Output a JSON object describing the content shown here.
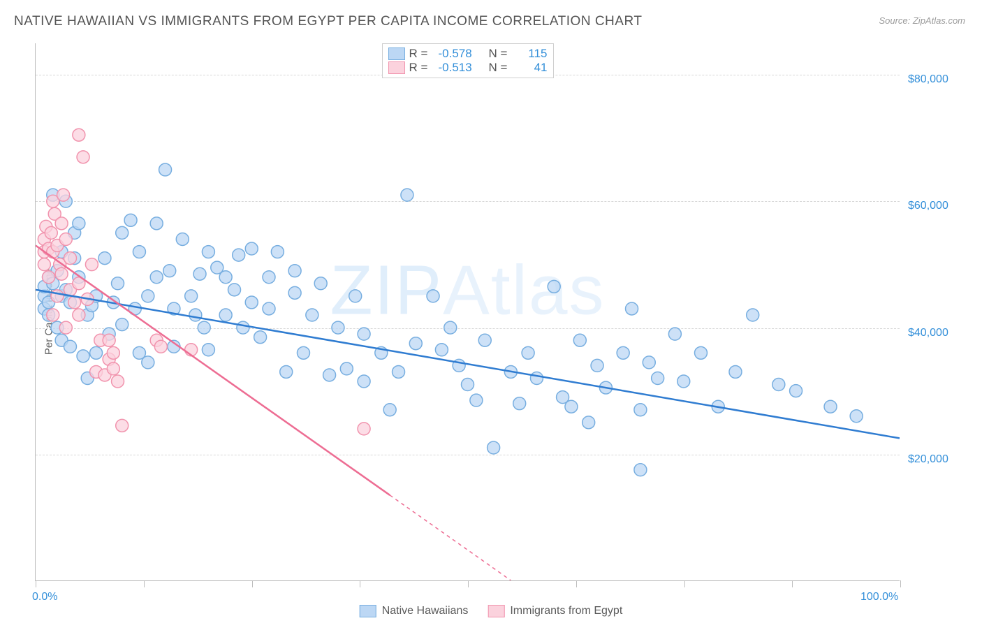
{
  "title": "NATIVE HAWAIIAN VS IMMIGRANTS FROM EGYPT PER CAPITA INCOME CORRELATION CHART",
  "source": "Source: ZipAtlas.com",
  "ylabel": "Per Capita Income",
  "watermark_a": "ZIP",
  "watermark_b": "Atlas",
  "chart": {
    "type": "scatter",
    "xlim": [
      0,
      100
    ],
    "ylim": [
      0,
      85000
    ],
    "x_ticks": [
      0,
      12.5,
      25,
      37.5,
      50,
      62.5,
      75,
      87.5,
      100
    ],
    "x_tick_labels_shown": {
      "0": "0.0%",
      "100": "100.0%"
    },
    "y_gridlines": [
      20000,
      40000,
      60000,
      80000
    ],
    "y_tick_labels": {
      "20000": "$20,000",
      "40000": "$40,000",
      "60000": "$60,000",
      "80000": "$80,000"
    },
    "background_color": "#ffffff",
    "grid_color": "#d8d8d8",
    "axis_color": "#bdbdbd",
    "ytick_label_color": "#338fd9",
    "xtick_label_color": "#338fd9",
    "label_fontsize": 15,
    "tick_fontsize": 16,
    "title_fontsize": 19,
    "title_color": "#545454",
    "marker_radius": 9,
    "marker_stroke_width": 1.5,
    "trend_line_width": 2.5,
    "series": [
      {
        "name": "Native Hawaiians",
        "color_fill": "#bcd7f4",
        "color_stroke": "#77aee0",
        "trend_color": "#2f7cd1",
        "R": -0.578,
        "N": 115,
        "trend": {
          "x1": 0,
          "y1": 46000,
          "x2": 100,
          "y2": 22500,
          "solid_to_x": 100
        },
        "points": [
          [
            1,
            45000
          ],
          [
            1,
            43000
          ],
          [
            1,
            46500
          ],
          [
            1.5,
            48000
          ],
          [
            1.5,
            44000
          ],
          [
            1.5,
            42000
          ],
          [
            2,
            47000
          ],
          [
            2,
            61000
          ],
          [
            2.5,
            49000
          ],
          [
            2.5,
            40000
          ],
          [
            3,
            52000
          ],
          [
            3,
            38000
          ],
          [
            3,
            45000
          ],
          [
            3.5,
            46000
          ],
          [
            3.5,
            60000
          ],
          [
            4,
            44000
          ],
          [
            4,
            37000
          ],
          [
            4.5,
            55000
          ],
          [
            4.5,
            51000
          ],
          [
            5,
            48000
          ],
          [
            5,
            56500
          ],
          [
            5.5,
            35500
          ],
          [
            6,
            42000
          ],
          [
            6,
            32000
          ],
          [
            6.5,
            43500
          ],
          [
            7,
            36000
          ],
          [
            7,
            45000
          ],
          [
            8,
            51000
          ],
          [
            8.5,
            39000
          ],
          [
            9,
            44000
          ],
          [
            9.5,
            47000
          ],
          [
            10,
            40500
          ],
          [
            10,
            55000
          ],
          [
            11,
            57000
          ],
          [
            11.5,
            43000
          ],
          [
            12,
            36000
          ],
          [
            12,
            52000
          ],
          [
            13,
            45000
          ],
          [
            13,
            34500
          ],
          [
            14,
            56500
          ],
          [
            14,
            48000
          ],
          [
            15,
            65000
          ],
          [
            15.5,
            49000
          ],
          [
            16,
            43000
          ],
          [
            16,
            37000
          ],
          [
            17,
            54000
          ],
          [
            18,
            45000
          ],
          [
            18.5,
            42000
          ],
          [
            19,
            48500
          ],
          [
            19.5,
            40000
          ],
          [
            20,
            52000
          ],
          [
            20,
            36500
          ],
          [
            21,
            49500
          ],
          [
            22,
            42000
          ],
          [
            22,
            48000
          ],
          [
            23,
            46000
          ],
          [
            23.5,
            51500
          ],
          [
            24,
            40000
          ],
          [
            25,
            44000
          ],
          [
            25,
            52500
          ],
          [
            26,
            38500
          ],
          [
            27,
            48000
          ],
          [
            27,
            43000
          ],
          [
            28,
            52000
          ],
          [
            29,
            33000
          ],
          [
            30,
            45500
          ],
          [
            30,
            49000
          ],
          [
            31,
            36000
          ],
          [
            32,
            42000
          ],
          [
            33,
            47000
          ],
          [
            34,
            32500
          ],
          [
            35,
            40000
          ],
          [
            36,
            33500
          ],
          [
            37,
            45000
          ],
          [
            38,
            39000
          ],
          [
            38,
            31500
          ],
          [
            40,
            36000
          ],
          [
            41,
            27000
          ],
          [
            42,
            33000
          ],
          [
            43,
            61000
          ],
          [
            44,
            37500
          ],
          [
            46,
            45000
          ],
          [
            47,
            36500
          ],
          [
            48,
            40000
          ],
          [
            49,
            34000
          ],
          [
            50,
            31000
          ],
          [
            51,
            28500
          ],
          [
            52,
            38000
          ],
          [
            53,
            21000
          ],
          [
            55,
            33000
          ],
          [
            56,
            28000
          ],
          [
            57,
            36000
          ],
          [
            58,
            32000
          ],
          [
            60,
            46500
          ],
          [
            61,
            29000
          ],
          [
            62,
            27500
          ],
          [
            63,
            38000
          ],
          [
            64,
            25000
          ],
          [
            65,
            34000
          ],
          [
            66,
            30500
          ],
          [
            68,
            36000
          ],
          [
            69,
            43000
          ],
          [
            70,
            27000
          ],
          [
            71,
            34500
          ],
          [
            72,
            32000
          ],
          [
            74,
            39000
          ],
          [
            75,
            31500
          ],
          [
            77,
            36000
          ],
          [
            79,
            27500
          ],
          [
            81,
            33000
          ],
          [
            83,
            42000
          ],
          [
            86,
            31000
          ],
          [
            88,
            30000
          ],
          [
            92,
            27500
          ],
          [
            95,
            26000
          ],
          [
            70,
            17500
          ]
        ]
      },
      {
        "name": "Immigrants from Egypt",
        "color_fill": "#fbd2dd",
        "color_stroke": "#f193ad",
        "trend_color": "#ed6d93",
        "R": -0.513,
        "N": 41,
        "trend": {
          "x1": 0,
          "y1": 53000,
          "x2": 55,
          "y2": 0,
          "solid_to_x": 41
        },
        "points": [
          [
            1,
            52000
          ],
          [
            1,
            54000
          ],
          [
            1,
            50000
          ],
          [
            1.2,
            56000
          ],
          [
            1.5,
            52500
          ],
          [
            1.5,
            48000
          ],
          [
            1.8,
            55000
          ],
          [
            2,
            60000
          ],
          [
            2,
            52000
          ],
          [
            2,
            42000
          ],
          [
            2.2,
            58000
          ],
          [
            2.5,
            53000
          ],
          [
            2.5,
            45000
          ],
          [
            2.8,
            50000
          ],
          [
            3,
            56500
          ],
          [
            3,
            48500
          ],
          [
            3.2,
            61000
          ],
          [
            3.5,
            54000
          ],
          [
            3.5,
            40000
          ],
          [
            4,
            51000
          ],
          [
            4,
            46000
          ],
          [
            4.5,
            44000
          ],
          [
            5,
            70500
          ],
          [
            5,
            42000
          ],
          [
            5,
            47000
          ],
          [
            5.5,
            67000
          ],
          [
            6,
            44500
          ],
          [
            6.5,
            50000
          ],
          [
            7,
            33000
          ],
          [
            7.5,
            38000
          ],
          [
            8,
            32500
          ],
          [
            8.5,
            35000
          ],
          [
            8.5,
            38000
          ],
          [
            9,
            36000
          ],
          [
            9,
            33500
          ],
          [
            9.5,
            31500
          ],
          [
            10,
            24500
          ],
          [
            14,
            38000
          ],
          [
            14.5,
            37000
          ],
          [
            18,
            36500
          ],
          [
            38,
            24000
          ]
        ]
      }
    ]
  },
  "legend_top": {
    "r_label": "R =",
    "n_label": "N ="
  },
  "legend_bottom": [
    {
      "label": "Native Hawaiians",
      "fill": "#bcd7f4",
      "stroke": "#77aee0"
    },
    {
      "label": "Immigrants from Egypt",
      "fill": "#fbd2dd",
      "stroke": "#f193ad"
    }
  ]
}
